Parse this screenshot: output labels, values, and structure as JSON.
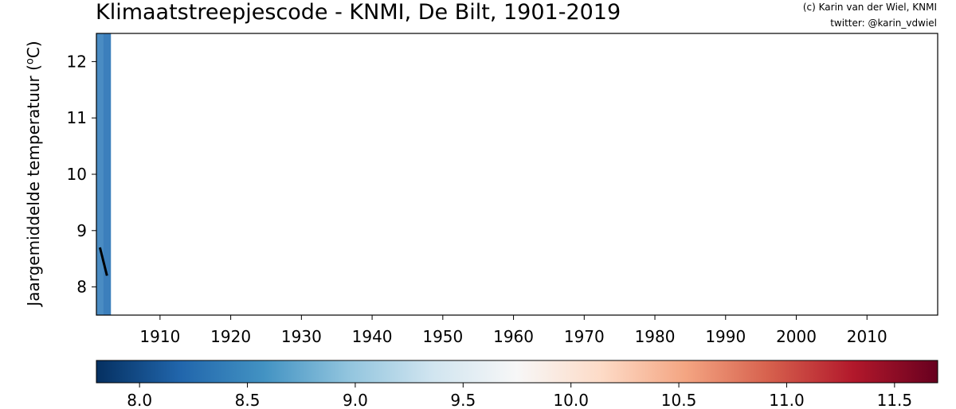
{
  "chart_data": [
    {
      "type": "bar",
      "title": "Klimaatstreepjescode - KNMI, De Bilt, 1901-2019",
      "credit_lines": [
        "(c) Karin van der Wiel, KNMI",
        "twitter: @karin_vdwiel"
      ],
      "ylabel_text": "Jaargemiddelde temperatuur (",
      "ylabel_sup": "o",
      "ylabel_end": "C)",
      "xlim": [
        1901,
        2020
      ],
      "ylim": [
        7.5,
        12.5
      ],
      "x_ticks": [
        1910,
        1920,
        1930,
        1940,
        1950,
        1960,
        1970,
        1980,
        1990,
        2000,
        2010
      ],
      "y_ticks": [
        8,
        9,
        10,
        11,
        12
      ],
      "stripes": [
        {
          "year": 1901,
          "value": 8.7,
          "color": "#4a8cc3"
        },
        {
          "year": 1902,
          "value": 8.2,
          "color": "#3c7fbc"
        }
      ],
      "line": {
        "color": "#000000",
        "points": [
          [
            1901.5,
            8.7
          ],
          [
            1902.5,
            8.2
          ]
        ]
      }
    },
    {
      "type": "heatmap",
      "name": "colorbar",
      "range": [
        7.8,
        11.7
      ],
      "ticks": [
        8.0,
        8.5,
        9.0,
        9.5,
        10.0,
        10.5,
        11.0,
        11.5
      ],
      "tick_labels": [
        "8.0",
        "8.5",
        "9.0",
        "9.5",
        "10.0",
        "10.5",
        "11.0",
        "11.5"
      ],
      "colormap": "RdBu_r",
      "colormap_stops": [
        "#053061",
        "#2166ac",
        "#4393c3",
        "#92c5de",
        "#d1e5f0",
        "#f7f7f7",
        "#fddbc7",
        "#f4a582",
        "#d6604d",
        "#b2182b",
        "#67001f"
      ]
    }
  ]
}
